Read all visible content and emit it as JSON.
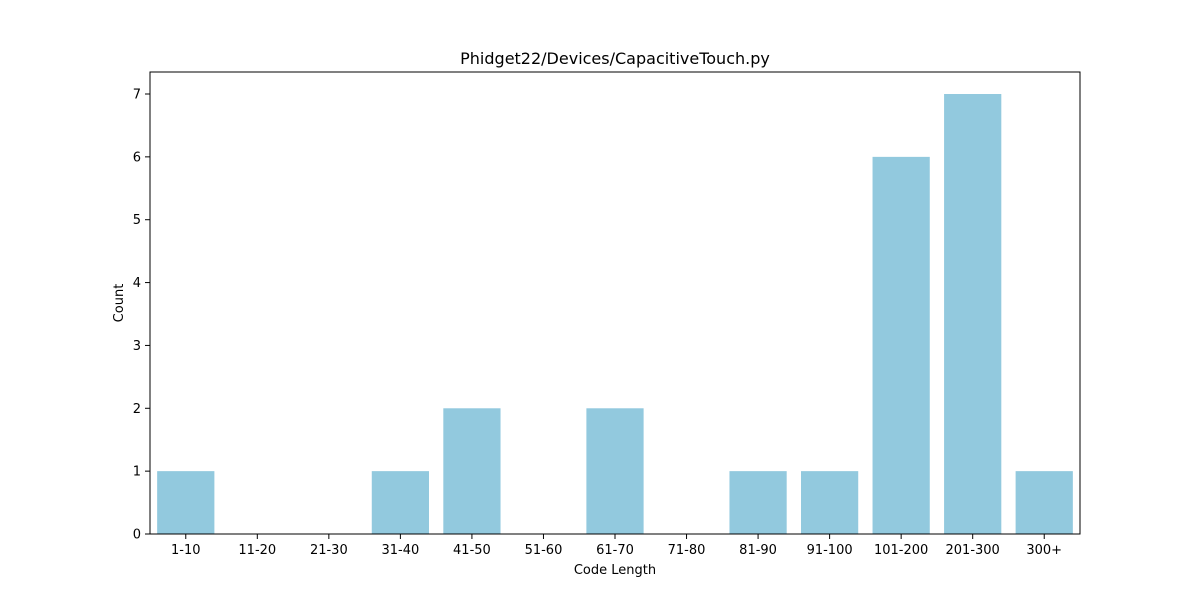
{
  "chart_data": {
    "type": "bar",
    "title": "Phidget22/Devices/CapacitiveTouch.py",
    "xlabel": "Code Length",
    "ylabel": "Count",
    "categories": [
      "1-10",
      "11-20",
      "21-30",
      "31-40",
      "41-50",
      "51-60",
      "61-70",
      "71-80",
      "81-90",
      "91-100",
      "101-200",
      "201-300",
      "300+"
    ],
    "values": [
      1,
      0,
      0,
      1,
      2,
      0,
      2,
      0,
      1,
      1,
      6,
      7,
      1
    ],
    "ylim": [
      0,
      7.35
    ],
    "yticks": [
      0,
      1,
      2,
      3,
      4,
      5,
      6,
      7
    ],
    "grid": false,
    "legend": "none",
    "bar_color": "#92c9de"
  }
}
